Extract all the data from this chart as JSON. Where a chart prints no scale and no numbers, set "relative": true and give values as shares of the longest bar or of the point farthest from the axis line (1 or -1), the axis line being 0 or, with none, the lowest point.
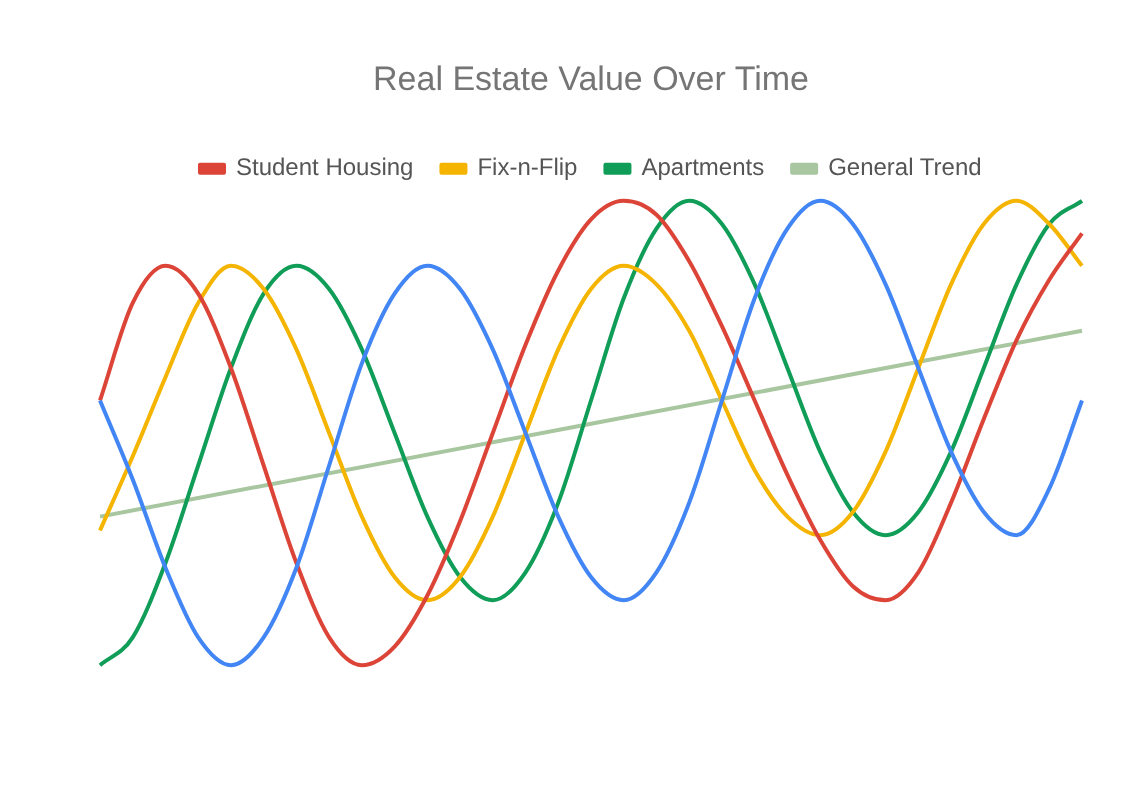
{
  "chart_data": {
    "type": "line",
    "title": "Real Estate Value Over Time",
    "relative": true,
    "legend": "top",
    "marker": "none",
    "line_style": "solid",
    "categories": [
      null,
      null,
      null,
      null,
      null,
      null,
      null,
      null,
      null,
      null,
      null,
      null,
      null,
      null,
      null,
      null,
      null,
      null,
      null,
      null,
      null,
      null,
      null,
      null,
      null,
      null,
      null,
      null,
      null,
      null,
      null
    ],
    "series": [
      {
        "color": "#4285f4",
        "values": [
          0.57,
          0.4,
          0.21,
          0.06,
          0,
          0.06,
          0.21,
          0.43,
          0.65,
          0.8,
          0.86,
          0.81,
          0.68,
          0.5,
          0.32,
          0.19,
          0.14,
          0.2,
          0.35,
          0.57,
          0.79,
          0.94,
          1.0,
          0.95,
          0.82,
          0.64,
          0.46,
          0.33,
          0.28,
          0.38,
          0.57
        ]
      },
      {
        "name": "Student Housing",
        "color": "#db4437",
        "values": [
          0.57,
          0.78,
          0.86,
          0.8,
          0.64,
          0.43,
          0.22,
          0.06,
          0,
          0.04,
          0.15,
          0.31,
          0.5,
          0.69,
          0.85,
          0.96,
          1.0,
          0.97,
          0.87,
          0.73,
          0.57,
          0.41,
          0.27,
          0.17,
          0.14,
          0.2,
          0.35,
          0.53,
          0.7,
          0.83,
          0.93
        ]
      },
      {
        "name": "Fix-n-Flip",
        "color": "#f4b400",
        "values": [
          0.29,
          0.45,
          0.62,
          0.78,
          0.86,
          0.81,
          0.68,
          0.5,
          0.32,
          0.19,
          0.14,
          0.19,
          0.32,
          0.5,
          0.68,
          0.81,
          0.86,
          0.82,
          0.72,
          0.57,
          0.42,
          0.32,
          0.28,
          0.33,
          0.46,
          0.64,
          0.82,
          0.95,
          1.0,
          0.95,
          0.86
        ]
      },
      {
        "name": "Apartments",
        "color": "#0f9d58",
        "values": [
          0,
          0.06,
          0.22,
          0.43,
          0.64,
          0.8,
          0.86,
          0.81,
          0.68,
          0.5,
          0.32,
          0.19,
          0.14,
          0.2,
          0.35,
          0.57,
          0.79,
          0.94,
          1.0,
          0.95,
          0.82,
          0.64,
          0.46,
          0.33,
          0.28,
          0.33,
          0.46,
          0.64,
          0.82,
          0.95,
          1.0
        ]
      },
      {
        "name": "General Trend",
        "color": "#a8c69f",
        "values": [
          0.32,
          null,
          null,
          null,
          null,
          null,
          null,
          null,
          null,
          null,
          null,
          null,
          null,
          null,
          null,
          null,
          null,
          null,
          null,
          null,
          null,
          null,
          null,
          null,
          null,
          null,
          null,
          null,
          null,
          null,
          0.72
        ]
      }
    ]
  }
}
